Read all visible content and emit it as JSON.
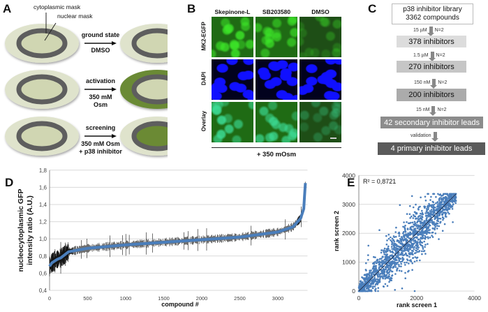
{
  "panels": {
    "A": {
      "label": "A",
      "mask_labels": {
        "cytoplasmic": "cytoplasmic mask",
        "nuclear": "nuclear mask"
      },
      "rows": [
        {
          "condition": "ground state",
          "treatment": [
            "DMSO"
          ]
        },
        {
          "condition": "activation",
          "treatment": [
            "350 mM",
            "Osm"
          ]
        },
        {
          "condition": "screening",
          "treatment": [
            "350 mM Osm",
            "+ p38 inhibitor"
          ]
        }
      ],
      "colors": {
        "cytoplasm": "#dfe3cc",
        "ring": "#5e5e5e",
        "nucleus": "#d0d6b2",
        "green": "#6b8a34"
      }
    },
    "B": {
      "label": "B",
      "columns": [
        "Skepinone-L",
        "SB203580",
        "DMSO"
      ],
      "rows": [
        "MK2-EGFP",
        "DAPI",
        "Overlay"
      ],
      "footer": "+ 350 mOsm"
    },
    "C": {
      "label": "C",
      "library": [
        "p38 inhibitor library",
        "3362 compounds"
      ],
      "steps": [
        {
          "conc": "15 µM",
          "n": "N=2",
          "result": "378 inhibitors"
        },
        {
          "conc": "1.5 µM",
          "n": "N=2",
          "result": "270 inhibitors"
        },
        {
          "conc": "150 nM",
          "n": "N=2",
          "result": "200 inhibitors"
        },
        {
          "conc": "15 nM",
          "n": "N=2",
          "result": "42 secondary inhibitor leads"
        },
        {
          "conc": "validation",
          "n": "",
          "result": "4 primary inhibitor leads"
        }
      ]
    },
    "D": {
      "label": "D"
    },
    "E": {
      "label": "E"
    }
  },
  "chart_data": [
    {
      "type": "line",
      "panel": "D",
      "title": "",
      "xlabel": "compound #",
      "ylabel": [
        "nucleocytoplasmic GFP",
        "intensity ratio (A.U.)"
      ],
      "xlim": [
        0,
        3362
      ],
      "ylim": [
        0.4,
        1.8
      ],
      "xticks": [
        "0",
        "500",
        "1000",
        "1500",
        "2000",
        "2500",
        "3000"
      ],
      "yticks": [
        "0,4",
        "0,6",
        "0,8",
        "1,0",
        "1,2",
        "1,4",
        "1,6",
        "1,8"
      ],
      "grid": true,
      "error_bars": true,
      "series": [
        {
          "name": "sorted mean ratio",
          "color": "#4a7ebb",
          "x": [
            0,
            30,
            100,
            150,
            250,
            500,
            1000,
            1500,
            2000,
            2500,
            3000,
            3200,
            3300,
            3340,
            3362
          ],
          "y": [
            0.68,
            0.72,
            0.76,
            0.78,
            0.85,
            0.89,
            0.93,
            0.96,
            0.99,
            1.02,
            1.08,
            1.14,
            1.24,
            1.35,
            1.65
          ]
        }
      ]
    },
    {
      "type": "scatter",
      "panel": "E",
      "xlabel": "rank screen 1",
      "ylabel": "rank screen 2",
      "xlim": [
        0,
        4000
      ],
      "ylim": [
        0,
        4000
      ],
      "xticks": [
        "0",
        "2000",
        "4000"
      ],
      "yticks": [
        "0",
        "1000",
        "2000",
        "3000",
        "4000"
      ],
      "grid": true,
      "n_points": 3362,
      "annotation": "R² = 0,8721",
      "trendline": {
        "slope": 1,
        "intercept": 0
      },
      "color": "#4a7ebb"
    }
  ]
}
